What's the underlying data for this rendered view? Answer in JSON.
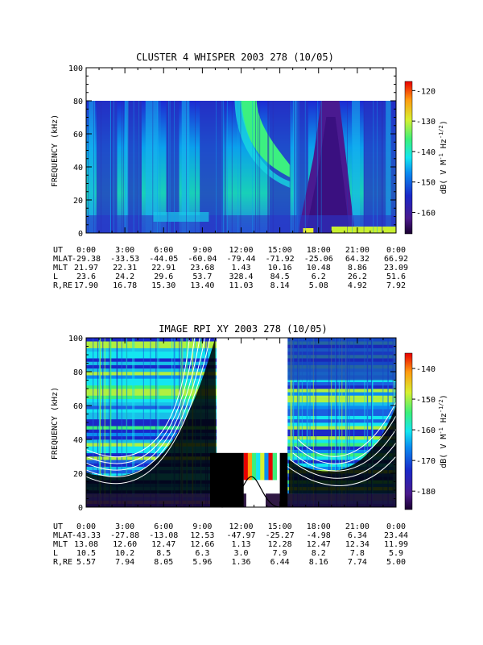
{
  "chart_data": [
    {
      "type": "heatmap",
      "title": "CLUSTER 4 WHISPER 2003 278 (10/05)",
      "ylabel": "FREQUENCY (kHz)",
      "ylim": [
        0,
        100
      ],
      "yticks": [
        "0",
        "20",
        "40",
        "60",
        "80",
        "100"
      ],
      "data_ylim": [
        0,
        80
      ],
      "colorbar": {
        "label": "dB( V M",
        "sup1": "-1",
        "mid": " Hz",
        "sup2": "-1/2",
        "end": ")",
        "range": [
          -167,
          -117
        ],
        "ticks": [
          "-120",
          "-130",
          "-140",
          "-150",
          "-160"
        ]
      },
      "row_labels": [
        "UT",
        "MLAT",
        "MLT",
        "L",
        "R,RE"
      ],
      "columns": [
        [
          "0:00",
          "-29.38",
          "21.97",
          "23.6",
          "17.90"
        ],
        [
          "3:00",
          "-33.53",
          "22.31",
          "24.2",
          "16.78"
        ],
        [
          "6:00",
          "-44.05",
          "22.91",
          "29.6",
          "15.30"
        ],
        [
          "9:00",
          "-60.04",
          "23.68",
          "53.7",
          "13.40"
        ],
        [
          "12:00",
          "-79.44",
          "1.43",
          "328.4",
          "11.03"
        ],
        [
          "15:00",
          "-71.92",
          "10.16",
          "84.5",
          "8.14"
        ],
        [
          "18:00",
          "-25.06",
          "10.48",
          "6.2",
          "5.08"
        ],
        [
          "21:00",
          "64.32",
          "8.86",
          "26.2",
          "4.92"
        ],
        [
          "0:00",
          "66.92",
          "23.09",
          "51.6",
          "7.92"
        ]
      ]
    },
    {
      "type": "heatmap",
      "title": "IMAGE RPI XY 2003 278 (10/05)",
      "ylabel": "FREQUENCY (kHz)",
      "ylim": [
        0,
        100
      ],
      "yticks": [
        "0",
        "20",
        "40",
        "60",
        "80",
        "100"
      ],
      "colorbar": {
        "label": "dB( V M",
        "sup1": "-1",
        "mid": " Hz",
        "sup2": "-1/2",
        "end": ")",
        "range": [
          -186,
          -135
        ],
        "ticks": [
          "-140",
          "-150",
          "-160",
          "-170",
          "-180"
        ]
      },
      "row_labels": [
        "UT",
        "MLAT",
        "MLT",
        "L",
        "R,RE"
      ],
      "columns": [
        [
          "0:00",
          "-43.33",
          "13.08",
          "10.5",
          "5.57"
        ],
        [
          "3:00",
          "-27.88",
          "12.60",
          "10.2",
          "7.94"
        ],
        [
          "6:00",
          "-13.08",
          "12.47",
          "8.5",
          "8.05"
        ],
        [
          "9:00",
          "12.53",
          "12.66",
          "6.3",
          "5.96"
        ],
        [
          "12:00",
          "-47.97",
          "1.13",
          "3.0",
          "1.36"
        ],
        [
          "15:00",
          "-25.27",
          "12.28",
          "7.9",
          "6.44"
        ],
        [
          "18:00",
          "-4.98",
          "12.47",
          "8.2",
          "8.16"
        ],
        [
          "21:00",
          "6.34",
          "12.34",
          "7.8",
          "7.74"
        ],
        [
          "0:00",
          "23.44",
          "11.99",
          "5.9",
          "5.00"
        ]
      ]
    }
  ]
}
